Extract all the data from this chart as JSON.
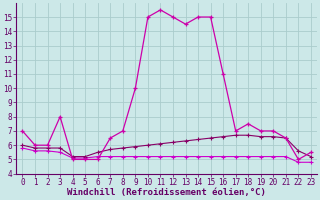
{
  "xlabel": "Windchill (Refroidissement éolien,°C)",
  "x": [
    0,
    1,
    2,
    3,
    4,
    5,
    6,
    7,
    8,
    9,
    10,
    11,
    12,
    13,
    14,
    15,
    16,
    17,
    18,
    19,
    20,
    21,
    22,
    23
  ],
  "line1": [
    7.0,
    6.0,
    6.0,
    8.0,
    5.0,
    5.0,
    5.0,
    6.5,
    7.0,
    10.0,
    15.0,
    15.5,
    15.0,
    14.5,
    15.0,
    15.0,
    11.0,
    7.0,
    7.5,
    7.0,
    7.0,
    6.5,
    5.0,
    5.5
  ],
  "line2": [
    6.0,
    5.8,
    5.8,
    5.8,
    5.2,
    5.2,
    5.5,
    5.7,
    5.8,
    5.9,
    6.0,
    6.1,
    6.2,
    6.3,
    6.4,
    6.5,
    6.6,
    6.7,
    6.7,
    6.6,
    6.6,
    6.5,
    5.6,
    5.2
  ],
  "line3": [
    5.8,
    5.6,
    5.6,
    5.5,
    5.1,
    5.1,
    5.2,
    5.2,
    5.2,
    5.2,
    5.2,
    5.2,
    5.2,
    5.2,
    5.2,
    5.2,
    5.2,
    5.2,
    5.2,
    5.2,
    5.2,
    5.2,
    4.8,
    4.8
  ],
  "ylim": [
    4,
    16
  ],
  "xlim": [
    -0.5,
    23.5
  ],
  "yticks": [
    4,
    5,
    6,
    7,
    8,
    9,
    10,
    11,
    12,
    13,
    14,
    15
  ],
  "xticks": [
    0,
    1,
    2,
    3,
    4,
    5,
    6,
    7,
    8,
    9,
    10,
    11,
    12,
    13,
    14,
    15,
    16,
    17,
    18,
    19,
    20,
    21,
    22,
    23
  ],
  "bg_color": "#cce8e8",
  "grid_color": "#aacccc",
  "line1_color": "#cc00aa",
  "line2_color": "#880066",
  "line3_color": "#cc00cc",
  "tick_label_color": "#660066",
  "tick_label_size": 5.5,
  "xlabel_size": 6.5
}
